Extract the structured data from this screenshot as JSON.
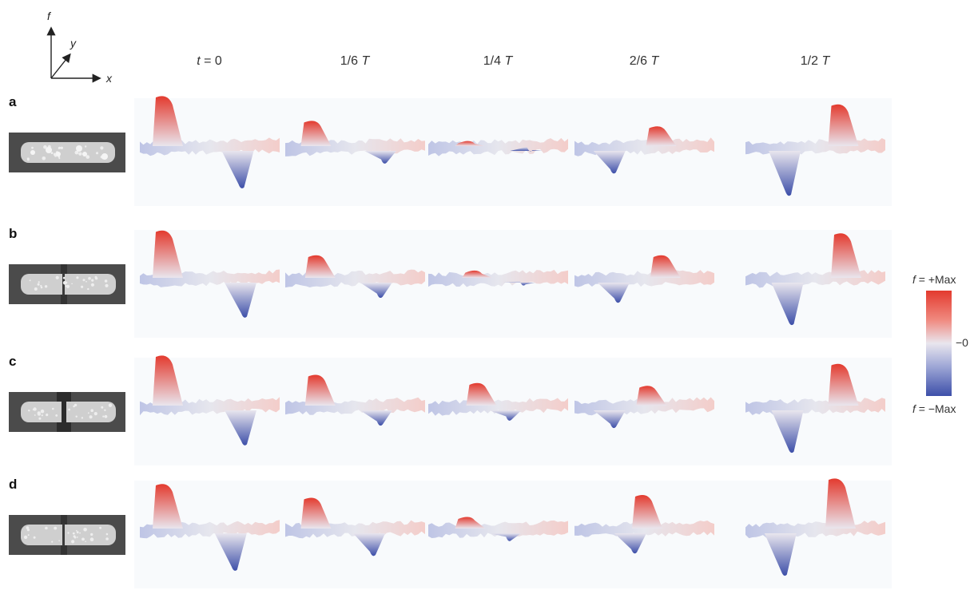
{
  "axes": {
    "x": "x",
    "y": "y",
    "z": "f"
  },
  "columns": [
    {
      "prefix": "",
      "var": "t",
      "text": " = 0"
    },
    {
      "prefix": "1/6 ",
      "var": "T",
      "text": ""
    },
    {
      "prefix": "1/4 ",
      "var": "T",
      "text": ""
    },
    {
      "prefix": "2/6 ",
      "var": "T",
      "text": ""
    },
    {
      "prefix": "1/2 ",
      "var": "T",
      "text": ""
    }
  ],
  "rows": [
    {
      "label": "a",
      "gap": "none"
    },
    {
      "label": "b",
      "gap": "thin"
    },
    {
      "label": "c",
      "gap": "wide"
    },
    {
      "label": "d",
      "gap": "thin"
    }
  ],
  "surfaces": [
    [
      {
        "pos": 0.9,
        "neg": 0.8,
        "posAt": 0.2,
        "negAt": 0.7
      },
      {
        "pos": 0.45,
        "neg": 0.3,
        "posAt": 0.22,
        "negAt": 0.68
      },
      {
        "pos": 0.08,
        "neg": 0.05,
        "posAt": 0.3,
        "negAt": 0.7
      },
      {
        "pos": 0.35,
        "neg": 0.5,
        "posAt": 0.62,
        "negAt": 0.25
      },
      {
        "pos": 0.75,
        "neg": 0.95,
        "posAt": 0.7,
        "negAt": 0.28
      }
    ],
    [
      {
        "pos": 0.85,
        "neg": 0.75,
        "posAt": 0.2,
        "negAt": 0.72
      },
      {
        "pos": 0.4,
        "neg": 0.35,
        "posAt": 0.25,
        "negAt": 0.65
      },
      {
        "pos": 0.12,
        "neg": 0.1,
        "posAt": 0.35,
        "negAt": 0.65
      },
      {
        "pos": 0.4,
        "neg": 0.45,
        "posAt": 0.65,
        "negAt": 0.28
      },
      {
        "pos": 0.8,
        "neg": 0.9,
        "posAt": 0.72,
        "negAt": 0.3
      }
    ],
    [
      {
        "pos": 0.9,
        "neg": 0.75,
        "posAt": 0.2,
        "negAt": 0.72
      },
      {
        "pos": 0.55,
        "neg": 0.35,
        "posAt": 0.25,
        "negAt": 0.65
      },
      {
        "pos": 0.4,
        "neg": 0.25,
        "posAt": 0.38,
        "negAt": 0.55
      },
      {
        "pos": 0.35,
        "neg": 0.4,
        "posAt": 0.55,
        "negAt": 0.25
      },
      {
        "pos": 0.75,
        "neg": 0.9,
        "posAt": 0.7,
        "negAt": 0.3
      }
    ],
    [
      {
        "pos": 0.8,
        "neg": 0.8,
        "posAt": 0.2,
        "negAt": 0.65
      },
      {
        "pos": 0.55,
        "neg": 0.5,
        "posAt": 0.22,
        "negAt": 0.6
      },
      {
        "pos": 0.2,
        "neg": 0.2,
        "posAt": 0.3,
        "negAt": 0.55
      },
      {
        "pos": 0.6,
        "neg": 0.45,
        "posAt": 0.52,
        "negAt": 0.4
      },
      {
        "pos": 0.9,
        "neg": 0.9,
        "posAt": 0.68,
        "negAt": 0.25
      }
    ]
  ],
  "colorbar": {
    "max_var": "f",
    "max_text": " = +Max",
    "zero_text": "−0",
    "min_var": "f",
    "min_text": " = −Max",
    "colors": {
      "pos": "#e33a2e",
      "mid": "#e9e6ee",
      "neg": "#3d4fa9"
    }
  }
}
